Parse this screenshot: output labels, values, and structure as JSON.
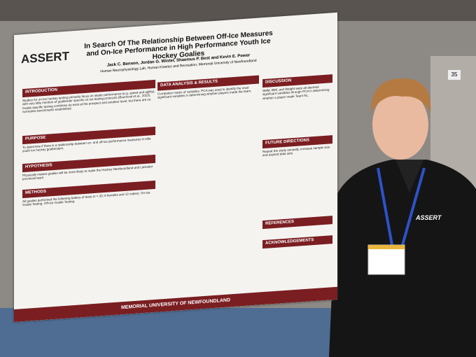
{
  "sign_number": "35",
  "poster": {
    "logo": "ASSERT",
    "title": "In Search Of The Relationship Between Off-Ice Measures and On-Ice Performance in High Performance Youth Ice Hockey Goalies",
    "authors": "Jack C. Benson, Jordan G. Winter, Shaemus P. Best and Kevin E. Power",
    "affiliation": "Human Neurophysiology Lab, Human Kinetics and Recreation, Memorial University of Newfoundland",
    "sections": [
      {
        "heading": "Introduction",
        "text": "Studies for on-ice hockey testing primarily focus on skater performance (e.g. speed and agility), with very little mention of goaltender specific on-ice testing protocols (Bournival et al., 2023). Goalie specific testing combines do exist at the prospect and amateur level, but there are no normative benchmarks established."
      },
      {
        "heading": "Purpose",
        "text": "To determine if there is a relationship between on- and off-ice performance measures in elite youth ice hockey goaltenders."
      },
      {
        "heading": "Hypothesis",
        "text": "Physically mature goalies will be more likely to make the Hockey Newfoundland and Labrador provincial team."
      },
      {
        "heading": "Methods",
        "text": "All goalies performed the following battery of tests (n = 20; 8 females and 12 males). On-Ice Goalie Testing. Off-Ice Goalie Testing."
      },
      {
        "heading": "Data Analysis & Results",
        "text": "Correlation matrix of variables. PCA was used to identify the most significant variables in determining whether players made the team."
      },
      {
        "heading": "Discussion",
        "text": "SMM, BMI, and Weight were all deemed significant variables through PCA in determining whether a player made Team NL."
      },
      {
        "heading": "Future Directions",
        "text": "Repeat the study annually, increase sample size and expand data sets."
      },
      {
        "heading": "References",
        "text": ""
      },
      {
        "heading": "Acknowledgements",
        "text": ""
      }
    ],
    "footer": "Memorial University of Newfoundland"
  },
  "shirt_logo": "ASSERT"
}
